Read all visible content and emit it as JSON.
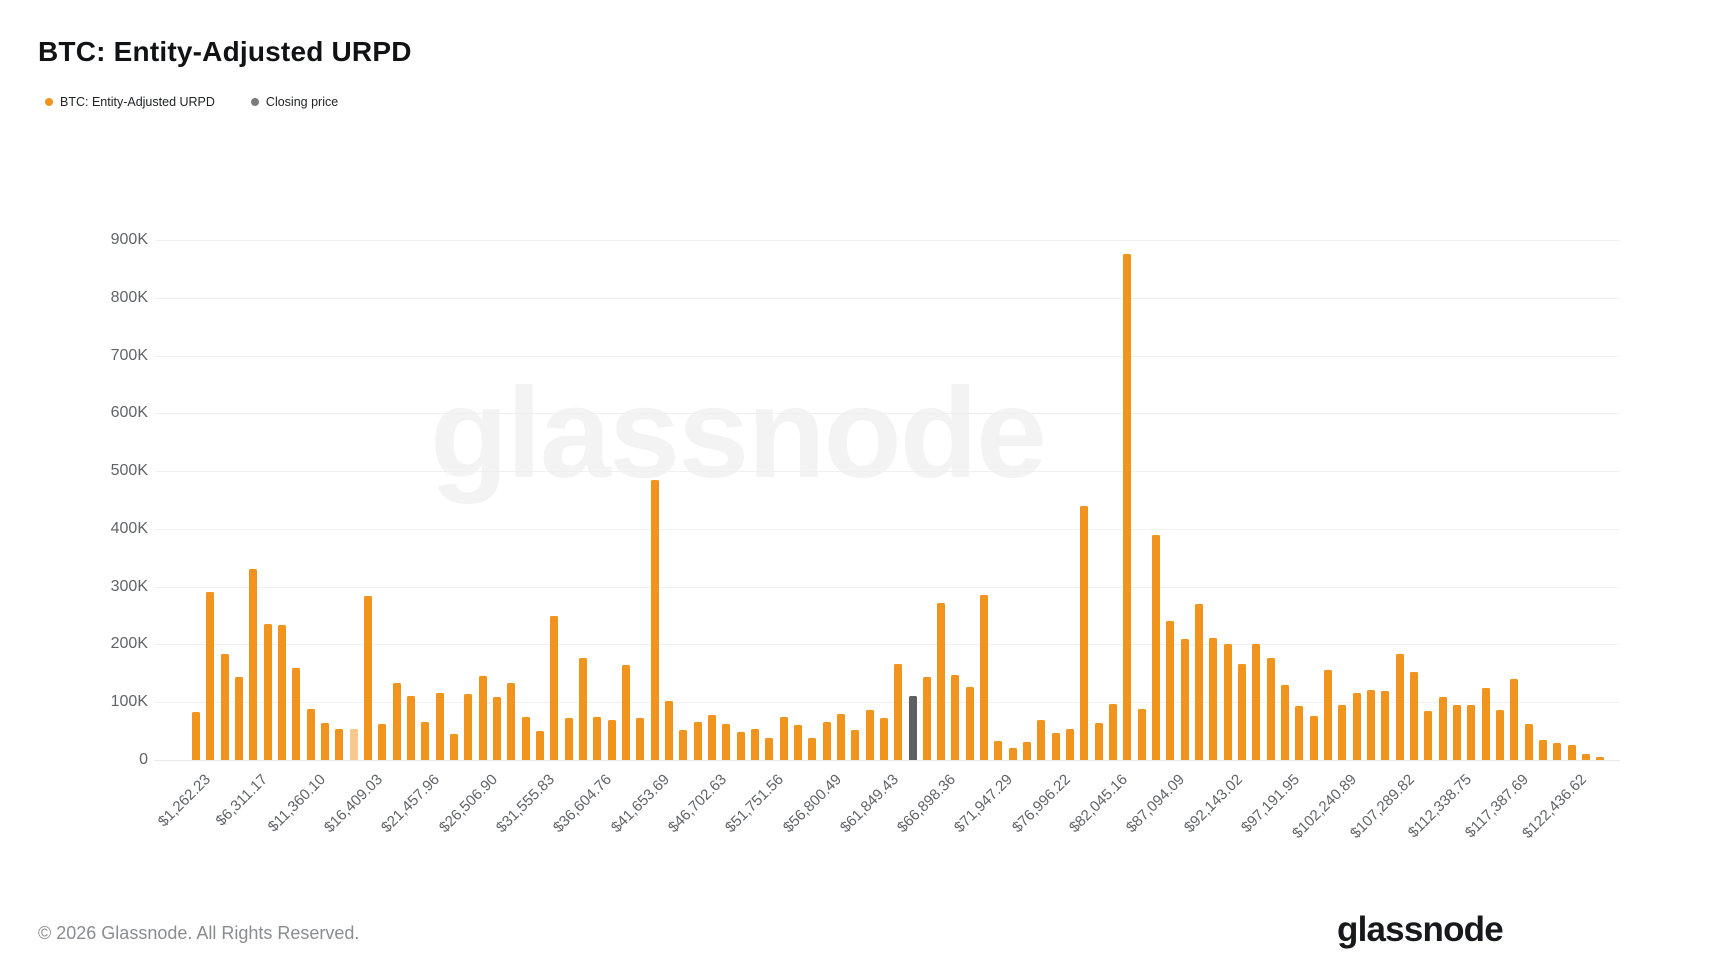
{
  "page": {
    "title": "BTC: Entity-Adjusted URPD"
  },
  "legend": {
    "items": [
      {
        "label": "BTC: Entity-Adjusted URPD",
        "color": "#F1941D"
      },
      {
        "label": "Closing price",
        "color": "#7B7B7B"
      }
    ]
  },
  "watermark": "glassnode",
  "footer": {
    "copyright": "© 2026 Glassnode. All Rights Reserved.",
    "logo_text": "glassnode"
  },
  "chart_data": {
    "type": "bar",
    "title": "BTC: Entity-Adjusted URPD",
    "xlabel": "",
    "ylabel": "",
    "ylim": [
      0,
      900000
    ],
    "grid": "horizontal",
    "legend_position": "top-left",
    "y_tick_labels": [
      "0",
      "100K",
      "200K",
      "300K",
      "400K",
      "500K",
      "600K",
      "700K",
      "800K",
      "900K"
    ],
    "x_tick_labels": [
      "$1,262.23",
      "$6,311.17",
      "$11,360.10",
      "$16,409.03",
      "$21,457.96",
      "$26,506.90",
      "$31,555.83",
      "$36,604.76",
      "$41,653.69",
      "$46,702.63",
      "$51,751.56",
      "$56,800.49",
      "$61,849.43",
      "$66,898.36",
      "$71,947.29",
      "$76,996.22",
      "$82,045.16",
      "$87,094.09",
      "$92,143.02",
      "$97,191.95",
      "$102,240.89",
      "$107,289.82",
      "$112,338.75",
      "$117,387.69",
      "$122,436.62"
    ],
    "x_ticks_every_n_bars": 4,
    "x_start_price": 1262.23,
    "x_price_step": 1262.23,
    "bar_color": "#F1941D",
    "closing_price_bar": {
      "index": 50,
      "color": "#5E5F61",
      "label": "Closing price"
    },
    "muted_bar_index": 11,
    "values_unit": "thousands",
    "values_thousands": [
      83,
      291,
      184,
      143,
      331,
      236,
      234,
      159,
      88,
      64,
      53,
      53,
      284,
      62,
      134,
      110,
      66,
      116,
      45,
      115,
      145,
      109,
      133,
      74,
      50,
      250,
      72,
      176,
      74,
      69,
      164,
      72,
      484,
      102,
      52,
      66,
      78,
      62,
      48,
      53,
      38,
      74,
      60,
      38,
      66,
      79,
      52,
      86,
      72,
      166,
      110,
      143,
      272,
      147,
      126,
      286,
      33,
      21,
      31,
      69,
      47,
      53,
      440,
      64,
      97,
      875,
      88,
      390,
      240,
      210,
      270,
      212,
      201,
      167,
      200,
      176,
      129,
      93,
      76,
      155,
      95,
      116,
      121,
      119,
      184,
      152,
      84,
      109,
      95,
      95,
      124,
      86,
      141,
      62,
      34,
      30,
      26,
      10,
      5
    ]
  }
}
